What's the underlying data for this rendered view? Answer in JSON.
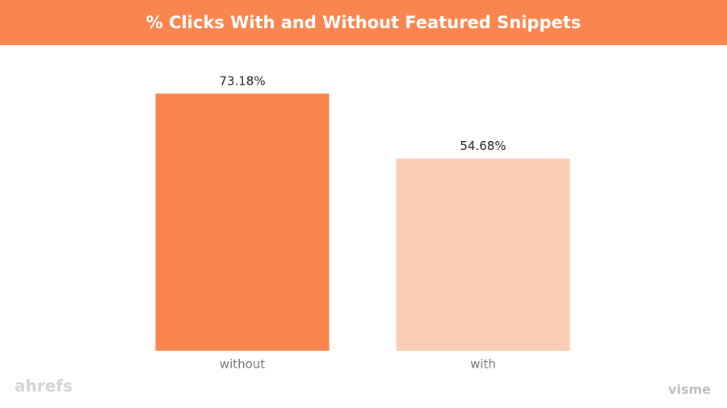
{
  "chart_data": {
    "type": "bar",
    "title": "% Clicks With and Without Featured Snippets",
    "categories": [
      "without",
      "with"
    ],
    "values": [
      73.18,
      54.68
    ],
    "value_labels": [
      "73.18%",
      "54.68%"
    ],
    "colors": [
      "#f9864f",
      "#fccdb6"
    ]
  },
  "branding": {
    "left": "ahrefs",
    "right": "visme"
  }
}
